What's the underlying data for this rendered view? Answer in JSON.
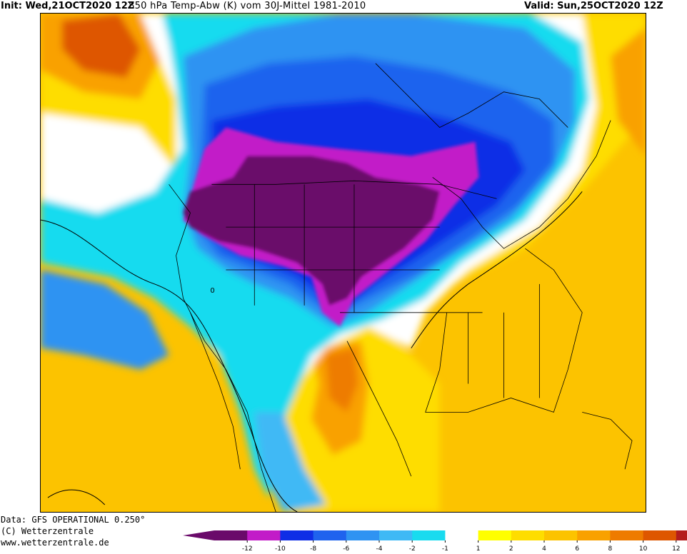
{
  "header": {
    "init": "Init: Wed,21OCT2020 12Z",
    "title": "850 hPa Temp-Abw (K) vom 30J-Mittel 1981-2010",
    "valid": "Valid: Sun,25OCT2020 12Z"
  },
  "footer": {
    "data_source": "Data: GFS OPERATIONAL 0.250°",
    "copyright": "(C) Wetterzentrale",
    "website": "www.wetterzentrale.de"
  },
  "map": {
    "contour_label": "0",
    "region": "North America"
  },
  "legend": {
    "bins": [
      {
        "color": "#6a0a6a"
      },
      {
        "color": "#c21bc8"
      },
      {
        "color": "#0f2ee6"
      },
      {
        "color": "#1f63ee"
      },
      {
        "color": "#2f93f2"
      },
      {
        "color": "#3fb9f5"
      },
      {
        "color": "#19dbef"
      },
      {
        "color": "#ffffff"
      },
      {
        "color": "#ffff00"
      },
      {
        "color": "#fedd00"
      },
      {
        "color": "#fcc300"
      },
      {
        "color": "#f9a100"
      },
      {
        "color": "#ee7b00"
      },
      {
        "color": "#de5600"
      },
      {
        "color": "#b41c1c"
      }
    ],
    "low_arrow_color": "#6a0a6a",
    "high_arrow_color": "#d9147d",
    "ticks": [
      "-12",
      "-10",
      "-8",
      "-6",
      "-4",
      "-2",
      "-1",
      "1",
      "2",
      "4",
      "6",
      "8",
      "10",
      "12"
    ]
  }
}
